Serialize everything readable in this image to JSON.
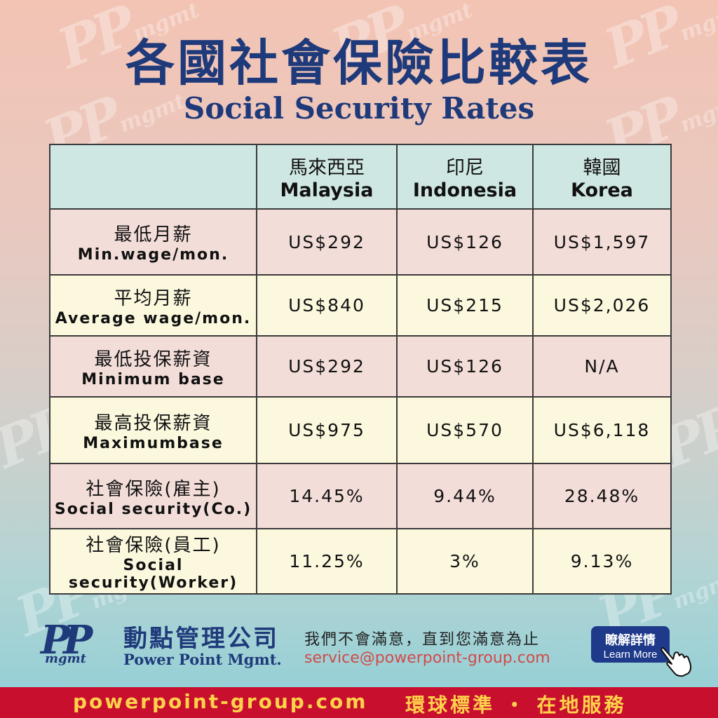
{
  "title_zh": "各國社會保險比較表",
  "title_en": "Social Security Rates",
  "watermark": {
    "mark": "PP",
    "text": "mgmt"
  },
  "table": {
    "columns": [
      {
        "zh": "馬來西亞",
        "en": "Malaysia"
      },
      {
        "zh": "印尼",
        "en": "Indonesia"
      },
      {
        "zh": "韓國",
        "en": "Korea"
      }
    ],
    "rows": [
      {
        "zh": "最低月薪",
        "en": "Min.wage/mon.",
        "values": [
          "US$292",
          "US$126",
          "US$1,597"
        ]
      },
      {
        "zh": "平均月薪",
        "en": "Average wage/mon.",
        "values": [
          "US$840",
          "US$215",
          "US$2,026"
        ]
      },
      {
        "zh": "最低投保薪資",
        "en": "Minimum base",
        "values": [
          "US$292",
          "US$126",
          "N/A"
        ]
      },
      {
        "zh": "最高投保薪資",
        "en": "Maximumbase",
        "values": [
          "US$975",
          "US$570",
          "US$6,118"
        ]
      },
      {
        "zh": "社會保險(雇主)",
        "en": "Social security(Co.)",
        "values": [
          "14.45%",
          "9.44%",
          "28.48%"
        ]
      },
      {
        "zh": "社會保險(員工)",
        "en": "Social security(Worker)",
        "values": [
          "11.25%",
          "3%",
          "9.13%"
        ]
      }
    ]
  },
  "company": {
    "logo_mark": "PP",
    "logo_sub": "mgmt",
    "name_zh": "動點管理公司",
    "name_en": "Power Point Mgmt.",
    "slogan": "我們不會滿意，直到您滿意為止",
    "email": "service@powerpoint-group.com"
  },
  "learn_more": {
    "zh": "瞭解詳情",
    "en": "Learn More"
  },
  "footer": {
    "url": "powerpoint-group.com",
    "slogan": "環球標準 ・ 在地服務"
  },
  "colors": {
    "navy": "#1f3a7a",
    "header_cell": "#cfe7e3",
    "row_pink": "#f2ddd8",
    "row_cream": "#fbf8de",
    "footer_red": "#c8102e",
    "footer_text": "#ffd24a"
  }
}
